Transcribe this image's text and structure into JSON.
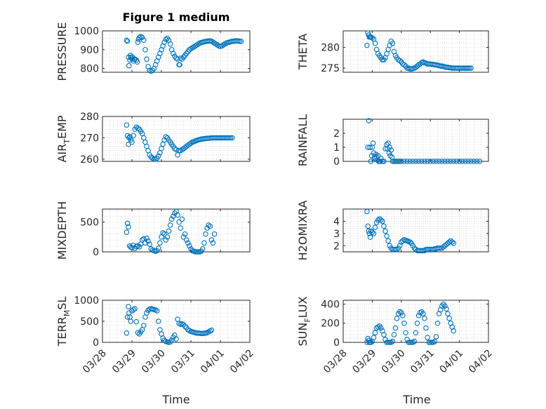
{
  "figure": {
    "title": "Figure 1 medium",
    "xlabel": "Time",
    "xticks": [
      "03/28",
      "03/29",
      "03/30",
      "03/31",
      "04/01",
      "04/02"
    ],
    "marker_color": "#0072BD",
    "axis_color": "#262626",
    "grid_color": "#c8c8c8"
  },
  "chart_data": [
    {
      "type": "scatter",
      "ylabel": "PRESSURE",
      "ylabel_sub": "",
      "ylabel_tail": "",
      "ylim": [
        780,
        1000
      ],
      "yticks": [
        800,
        900,
        1000
      ],
      "grid": true,
      "xlim": [
        0,
        5
      ],
      "x": [
        0.85,
        0.88,
        0.9,
        0.93,
        0.97,
        1.0,
        1.05,
        1.1,
        1.15,
        1.2,
        1.22,
        1.25,
        1.3,
        1.35,
        1.4,
        1.45,
        1.5,
        1.55,
        1.6,
        1.65,
        1.7,
        1.75,
        1.8,
        1.85,
        1.9,
        1.95,
        2.0,
        2.05,
        2.1,
        2.15,
        2.2,
        2.25,
        2.3,
        2.35,
        2.4,
        2.45,
        2.5,
        2.55,
        2.6,
        2.65,
        2.7,
        2.75,
        2.8,
        2.85,
        2.9,
        2.95,
        3.0,
        3.05,
        3.1,
        3.15,
        3.2,
        3.25,
        3.3,
        3.35,
        3.4,
        3.45,
        3.5,
        3.55,
        3.6,
        3.65,
        3.7,
        3.75,
        3.8,
        3.85,
        3.9,
        3.95,
        4.0,
        4.05,
        4.1,
        4.15,
        4.2,
        4.25,
        4.3,
        4.35,
        4.4,
        4.45,
        4.5,
        4.55,
        4.6,
        4.65,
        4.7
      ],
      "y": [
        945,
        860,
        815,
        845,
        860,
        850,
        840,
        850,
        845,
        940,
        955,
        965,
        970,
        965,
        950,
        900,
        850,
        810,
        790,
        785,
        790,
        800,
        820,
        840,
        860,
        880,
        900,
        920,
        940,
        955,
        960,
        950,
        930,
        900,
        880,
        865,
        855,
        850,
        820,
        855,
        850,
        860,
        870,
        880,
        890,
        900,
        905,
        910,
        915,
        920,
        925,
        930,
        935,
        938,
        940,
        942,
        944,
        945,
        946,
        947,
        945,
        940,
        935,
        930,
        925,
        920,
        918,
        920,
        925,
        930,
        935,
        938,
        940,
        942,
        944,
        945,
        946,
        947,
        946,
        945,
        944
      ],
      "x2": [
        0.82,
        0.95,
        1.02,
        1.08,
        1.18,
        2.62
      ],
      "y2": [
        950,
        870,
        860,
        850,
        835,
        820
      ]
    },
    {
      "type": "scatter",
      "ylabel": "THETA",
      "ylabel_sub": "",
      "ylabel_tail": "",
      "ylim": [
        274,
        284
      ],
      "yticks": [
        275,
        280
      ],
      "grid": true,
      "xlim": [
        0,
        5
      ],
      "x": [
        0.82,
        0.85,
        0.88,
        0.9,
        0.93,
        0.96,
        1.0,
        1.05,
        1.1,
        1.15,
        1.2,
        1.25,
        1.3,
        1.35,
        1.4,
        1.45,
        1.5,
        1.55,
        1.6,
        1.65,
        1.7,
        1.75,
        1.8,
        1.85,
        1.9,
        1.95,
        2.0,
        2.05,
        2.1,
        2.15,
        2.2,
        2.25,
        2.3,
        2.35,
        2.4,
        2.45,
        2.5,
        2.55,
        2.6,
        2.65,
        2.7,
        2.75,
        2.8,
        2.85,
        2.9,
        2.95,
        3.0,
        3.05,
        3.1,
        3.15,
        3.2,
        3.25,
        3.3,
        3.35,
        3.4,
        3.45,
        3.5,
        3.55,
        3.6,
        3.65,
        3.7,
        3.75,
        3.8,
        3.85,
        3.9,
        3.95,
        4.0,
        4.05,
        4.1,
        4.15,
        4.2,
        4.25,
        4.3,
        4.35,
        4.4
      ],
      "y": [
        280.5,
        283.5,
        283.0,
        282.5,
        282.5,
        282.5,
        282.3,
        282.0,
        281.0,
        279.5,
        278.5,
        278.0,
        277.5,
        277.0,
        277.0,
        277.5,
        278.5,
        279.5,
        280.5,
        281.5,
        281.0,
        279.0,
        278.0,
        277.5,
        277.0,
        276.8,
        276.5,
        276.0,
        275.8,
        275.5,
        275.0,
        275.0,
        274.8,
        274.8,
        274.9,
        275.0,
        275.2,
        275.5,
        275.8,
        276.0,
        276.3,
        276.5,
        276.3,
        276.2,
        276.0,
        276.0,
        276.0,
        275.9,
        275.9,
        275.8,
        275.8,
        275.7,
        275.6,
        275.5,
        275.5,
        275.4,
        275.3,
        275.2,
        275.2,
        275.1,
        275.1,
        275.0,
        275.0,
        275.0,
        275.0,
        275.0,
        275.0,
        275.0,
        275.0,
        275.0,
        275.0,
        275.0,
        275.0,
        275.0,
        275.0
      ],
      "x2": [],
      "y2": []
    },
    {
      "type": "scatter",
      "ylabel": "AIR",
      "ylabel_sub": "T",
      "ylabel_tail": "EMP",
      "ylim": [
        259,
        280
      ],
      "yticks": [
        260,
        270,
        280
      ],
      "grid": true,
      "xlim": [
        0,
        5
      ],
      "x": [
        0.82,
        0.85,
        0.88,
        0.9,
        0.93,
        0.96,
        1.0,
        1.05,
        1.1,
        1.15,
        1.2,
        1.25,
        1.3,
        1.35,
        1.4,
        1.45,
        1.5,
        1.55,
        1.6,
        1.65,
        1.7,
        1.75,
        1.8,
        1.85,
        1.9,
        1.95,
        2.0,
        2.05,
        2.1,
        2.15,
        2.2,
        2.25,
        2.3,
        2.35,
        2.4,
        2.45,
        2.5,
        2.55,
        2.6,
        2.65,
        2.7,
        2.75,
        2.8,
        2.85,
        2.9,
        2.95,
        3.0,
        3.05,
        3.1,
        3.15,
        3.2,
        3.25,
        3.3,
        3.35,
        3.4,
        3.45,
        3.5,
        3.55,
        3.6,
        3.65,
        3.7,
        3.75,
        3.8,
        3.85,
        3.9,
        3.95,
        4.0,
        4.05,
        4.1,
        4.15,
        4.2,
        4.25,
        4.3,
        4.35,
        4.4
      ],
      "y": [
        276,
        271,
        267,
        270,
        270.5,
        269,
        268,
        271,
        274,
        275,
        274.5,
        274,
        273,
        272,
        270,
        268,
        266,
        264,
        262,
        261,
        260.5,
        260.2,
        260,
        260.5,
        261.5,
        263,
        265,
        267,
        269,
        270.5,
        270,
        269,
        268,
        267,
        266,
        265,
        264.5,
        262,
        264,
        264,
        264.5,
        265,
        265.5,
        266,
        266.5,
        267,
        267.5,
        268,
        268.2,
        268.5,
        268.8,
        269,
        269.2,
        269.4,
        269.5,
        269.6,
        269.7,
        269.8,
        269.8,
        269.9,
        269.9,
        270,
        270,
        270,
        270,
        270,
        270,
        270,
        270,
        270,
        270,
        270,
        270,
        270,
        270
      ],
      "x2": [],
      "y2": []
    },
    {
      "type": "scatter",
      "ylabel": "RAINFALL",
      "ylabel_sub": "",
      "ylabel_tail": "",
      "ylim": [
        0,
        3
      ],
      "yticks": [
        0,
        1,
        2
      ],
      "grid": true,
      "xlim": [
        0,
        5
      ],
      "x": [
        0.85,
        0.88,
        0.92,
        0.95,
        0.98,
        1.0,
        1.03,
        1.05,
        1.08,
        1.1,
        1.13,
        1.15,
        1.18,
        1.2,
        1.22,
        1.25,
        1.28,
        1.3,
        1.35,
        1.4,
        1.45,
        1.5,
        1.52,
        1.55,
        1.58,
        1.6,
        1.62,
        1.65,
        1.68,
        1.7,
        1.75,
        1.8,
        1.85,
        1.9,
        1.95,
        2.0,
        2.1,
        2.2,
        2.3,
        2.4,
        2.5,
        2.6,
        2.7,
        2.8,
        2.9,
        3.0,
        3.1,
        3.2,
        3.3,
        3.4,
        3.5,
        3.6,
        3.7,
        3.8,
        3.9,
        4.0,
        4.1,
        4.2,
        4.3,
        4.4,
        4.5,
        4.6,
        4.7
      ],
      "y": [
        1.0,
        2.9,
        1.0,
        0.0,
        0.4,
        1.0,
        1.3,
        0.6,
        0.3,
        0.2,
        0.5,
        0.3,
        0.1,
        0.4,
        0.0,
        0.0,
        0.0,
        0.2,
        0.0,
        0.0,
        0.9,
        1.2,
        0.9,
        1.3,
        0.6,
        1.0,
        0.4,
        0.8,
        0.3,
        0.0,
        0.0,
        0.0,
        0.0,
        0.0,
        0.0,
        0.0,
        0.0,
        0.0,
        0.0,
        0.0,
        0.0,
        0.0,
        0.0,
        0.0,
        0.0,
        0.0,
        0.0,
        0.0,
        0.0,
        0.0,
        0.0,
        0.0,
        0.0,
        0.0,
        0.0,
        0.0,
        0.0,
        0.0,
        0.0,
        0.0,
        0.0,
        0.0,
        0.0
      ],
      "x2": [],
      "y2": []
    },
    {
      "type": "scatter",
      "ylabel": "MIXDEPTH",
      "ylabel_sub": "",
      "ylabel_tail": "",
      "ylim": [
        0,
        720
      ],
      "yticks": [
        0,
        500
      ],
      "grid": true,
      "xlim": [
        0,
        5
      ],
      "x": [
        0.82,
        0.85,
        0.88,
        0.92,
        0.96,
        1.0,
        1.05,
        1.1,
        1.15,
        1.2,
        1.25,
        1.3,
        1.35,
        1.4,
        1.45,
        1.5,
        1.55,
        1.6,
        1.65,
        1.7,
        1.75,
        1.8,
        1.85,
        1.9,
        1.95,
        2.0,
        2.05,
        2.1,
        2.15,
        2.2,
        2.25,
        2.3,
        2.35,
        2.4,
        2.45,
        2.5,
        2.55,
        2.6,
        2.65,
        2.7,
        2.75,
        2.8,
        2.85,
        2.9,
        2.95,
        3.0,
        3.05,
        3.1,
        3.15,
        3.2,
        3.25,
        3.3,
        3.35,
        3.4,
        3.45,
        3.5,
        3.55,
        3.6,
        3.65,
        3.7,
        3.75,
        3.8
      ],
      "y": [
        330,
        480,
        420,
        100,
        80,
        70,
        110,
        60,
        90,
        100,
        85,
        130,
        200,
        220,
        150,
        230,
        180,
        130,
        50,
        30,
        20,
        10,
        20,
        60,
        150,
        250,
        320,
        300,
        200,
        250,
        350,
        450,
        550,
        600,
        650,
        680,
        620,
        500,
        400,
        550,
        250,
        300,
        200,
        150,
        100,
        50,
        20,
        10,
        0,
        0,
        0,
        0,
        10,
        50,
        150,
        300,
        400,
        450,
        430,
        200,
        150,
        300
      ],
      "x2": [],
      "y2": []
    },
    {
      "type": "scatter",
      "ylabel": "H2OMIXRA",
      "ylabel_sub": "",
      "ylabel_tail": "",
      "ylim": [
        1.5,
        5.0
      ],
      "yticks": [
        2,
        3,
        4
      ],
      "grid": true,
      "xlim": [
        0,
        5
      ],
      "x": [
        0.82,
        0.85,
        0.88,
        0.9,
        0.93,
        0.96,
        1.0,
        1.05,
        1.1,
        1.15,
        1.2,
        1.25,
        1.3,
        1.35,
        1.4,
        1.45,
        1.5,
        1.55,
        1.6,
        1.65,
        1.7,
        1.75,
        1.8,
        1.85,
        1.9,
        1.95,
        2.0,
        2.05,
        2.1,
        2.15,
        2.2,
        2.25,
        2.3,
        2.35,
        2.4,
        2.45,
        2.5,
        2.55,
        2.6,
        2.65,
        2.7,
        2.75,
        2.8,
        2.85,
        2.9,
        2.95,
        3.0,
        3.05,
        3.1,
        3.15,
        3.2,
        3.25,
        3.3,
        3.35,
        3.4,
        3.45,
        3.5,
        3.55,
        3.6,
        3.65,
        3.7,
        3.75,
        3.8
      ],
      "y": [
        4.8,
        3.6,
        3.2,
        3.0,
        2.7,
        3.2,
        3.1,
        3.0,
        3.5,
        3.9,
        4.1,
        4.2,
        4.1,
        4.0,
        3.6,
        3.2,
        2.8,
        2.4,
        2.0,
        1.8,
        1.7,
        1.7,
        1.7,
        1.7,
        1.8,
        2.0,
        2.3,
        2.4,
        2.5,
        2.45,
        2.4,
        2.35,
        2.3,
        2.2,
        2.0,
        1.8,
        1.7,
        1.6,
        1.6,
        1.6,
        1.6,
        1.6,
        1.6,
        1.7,
        1.7,
        1.7,
        1.7,
        1.7,
        1.7,
        1.75,
        1.75,
        1.8,
        1.8,
        1.8,
        1.8,
        1.9,
        2.0,
        2.1,
        2.2,
        2.3,
        2.4,
        2.3,
        2.2
      ],
      "x2": [],
      "y2": []
    },
    {
      "type": "scatter",
      "ylabel": "TERR",
      "ylabel_sub": "M",
      "ylabel_tail": "SL",
      "ylim": [
        0,
        1000
      ],
      "yticks": [
        0,
        500,
        1000
      ],
      "grid": true,
      "xlim": [
        0,
        5
      ],
      "x": [
        0.82,
        0.85,
        0.88,
        0.9,
        0.93,
        0.96,
        1.0,
        1.05,
        1.1,
        1.15,
        1.2,
        1.25,
        1.3,
        1.35,
        1.4,
        1.45,
        1.5,
        1.55,
        1.6,
        1.65,
        1.7,
        1.75,
        1.8,
        1.85,
        1.9,
        1.95,
        2.0,
        2.05,
        2.1,
        2.15,
        2.2,
        2.25,
        2.3,
        2.35,
        2.4,
        2.45,
        2.5,
        2.55,
        2.6,
        2.65,
        2.7,
        2.75,
        2.8,
        2.85,
        2.9,
        2.95,
        3.0,
        3.05,
        3.1,
        3.15,
        3.2,
        3.25,
        3.3,
        3.35,
        3.4,
        3.45,
        3.5,
        3.55,
        3.6,
        3.65,
        3.7
      ],
      "y": [
        220,
        600,
        850,
        700,
        600,
        500,
        750,
        780,
        800,
        490,
        230,
        200,
        250,
        300,
        400,
        600,
        700,
        760,
        790,
        800,
        790,
        780,
        770,
        750,
        500,
        300,
        200,
        100,
        50,
        20,
        10,
        0,
        10,
        50,
        120,
        170,
        80,
        550,
        450,
        430,
        440,
        420,
        380,
        350,
        300,
        280,
        260,
        250,
        240,
        230,
        220,
        220,
        215,
        210,
        210,
        215,
        220,
        230,
        250,
        270,
        290
      ],
      "x2": [],
      "y2": []
    },
    {
      "type": "scatter",
      "ylabel": "SUN",
      "ylabel_sub": "F",
      "ylabel_tail": "LUX",
      "ylim": [
        0,
        440
      ],
      "yticks": [
        0,
        200,
        400
      ],
      "grid": true,
      "xlim": [
        0,
        5
      ],
      "x": [
        0.82,
        0.85,
        0.88,
        0.9,
        0.93,
        0.96,
        1.0,
        1.05,
        1.1,
        1.15,
        1.2,
        1.25,
        1.3,
        1.35,
        1.4,
        1.45,
        1.5,
        1.55,
        1.6,
        1.65,
        1.7,
        1.75,
        1.8,
        1.85,
        1.9,
        1.95,
        2.0,
        2.05,
        2.1,
        2.15,
        2.2,
        2.25,
        2.3,
        2.35,
        2.4,
        2.45,
        2.5,
        2.55,
        2.6,
        2.65,
        2.7,
        2.75,
        2.8,
        2.85,
        2.9,
        2.95,
        3.0,
        3.05,
        3.1,
        3.15,
        3.2,
        3.25,
        3.3,
        3.35,
        3.4,
        3.45,
        3.5,
        3.55,
        3.6,
        3.65,
        3.7,
        3.75,
        3.8
      ],
      "y": [
        0,
        40,
        20,
        0,
        0,
        0,
        10,
        50,
        100,
        150,
        160,
        170,
        150,
        120,
        80,
        30,
        0,
        0,
        0,
        0,
        10,
        80,
        150,
        250,
        300,
        320,
        310,
        280,
        200,
        100,
        30,
        0,
        0,
        0,
        0,
        10,
        100,
        200,
        280,
        310,
        320,
        300,
        250,
        150,
        50,
        0,
        0,
        0,
        0,
        10,
        60,
        200,
        300,
        340,
        380,
        400,
        380,
        350,
        300,
        250,
        200,
        160,
        120
      ],
      "x2": [],
      "y2": []
    }
  ]
}
